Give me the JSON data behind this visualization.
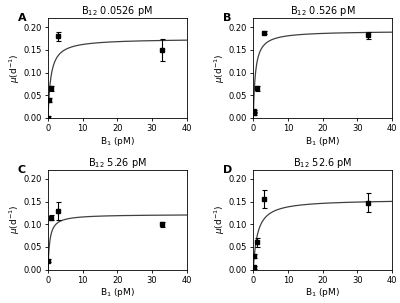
{
  "panels": [
    {
      "label": "A",
      "title_parts": [
        "B",
        "12",
        " 0.0526 pM"
      ],
      "data_x": [
        0.1,
        0.3,
        1.0,
        3.0,
        33.0
      ],
      "data_y": [
        0.0,
        0.04,
        0.065,
        0.18,
        0.15
      ],
      "data_yerr": [
        0.005,
        0.005,
        0.005,
        0.01,
        0.025
      ],
      "mu_max": 0.175,
      "Ks": 0.8
    },
    {
      "label": "B",
      "title_parts": [
        "B",
        "12",
        " 0.526 pM"
      ],
      "data_x": [
        0.1,
        0.3,
        1.0,
        3.0,
        33.0
      ],
      "data_y": [
        0.01,
        0.015,
        0.065,
        0.188,
        0.182
      ],
      "data_yerr": [
        0.003,
        0.003,
        0.005,
        0.003,
        0.008
      ],
      "mu_max": 0.192,
      "Ks": 0.6
    },
    {
      "label": "C",
      "title_parts": [
        "B",
        "12",
        " 5.26 pM"
      ],
      "data_x": [
        0.1,
        1.0,
        3.0,
        33.0
      ],
      "data_y": [
        0.02,
        0.115,
        0.13,
        0.1
      ],
      "data_yerr": [
        0.003,
        0.005,
        0.02,
        0.005
      ],
      "mu_max": 0.122,
      "Ks": 0.5
    },
    {
      "label": "D",
      "title_parts": [
        "B",
        "12",
        " 52.6 pM"
      ],
      "data_x": [
        0.1,
        0.3,
        1.0,
        3.0,
        33.0
      ],
      "data_y": [
        0.005,
        0.03,
        0.06,
        0.155,
        0.148
      ],
      "data_yerr": [
        0.003,
        0.005,
        0.01,
        0.02,
        0.02
      ],
      "mu_max": 0.155,
      "Ks": 1.2
    }
  ],
  "xlim": [
    0,
    40
  ],
  "ylim": [
    0,
    0.22
  ],
  "yticks": [
    0.0,
    0.05,
    0.1,
    0.15,
    0.2
  ],
  "xticks": [
    0,
    10,
    20,
    30,
    40
  ],
  "xlabel": "B$_1$ (pM)",
  "ylabel": "$\\mu$(d$^{-1}$)",
  "line_color": "#404040",
  "marker_color": "black",
  "background_color": "#ffffff"
}
